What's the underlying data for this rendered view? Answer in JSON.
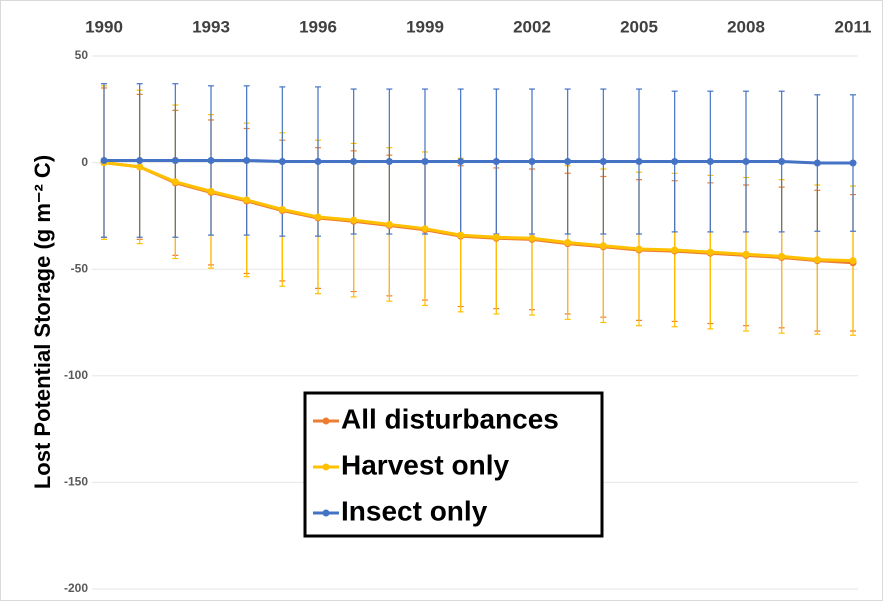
{
  "chart_data": {
    "type": "line",
    "y_label": "Lost Potential Storage (g m⁻² C)",
    "x": [
      1990,
      1991,
      1992,
      1993,
      1994,
      1995,
      1996,
      1997,
      1998,
      1999,
      2000,
      2001,
      2002,
      2003,
      2004,
      2005,
      2006,
      2007,
      2008,
      2009,
      2010,
      2011
    ],
    "xlim": [
      1990,
      2011
    ],
    "xticks": [
      1990,
      1993,
      1996,
      1999,
      2002,
      2005,
      2008,
      2011
    ],
    "ylim": [
      -200,
      50
    ],
    "yticks": [
      -200,
      -150,
      -100,
      -50,
      0,
      50
    ],
    "grid": true,
    "legend": "center",
    "series": [
      {
        "name": "All disturbances",
        "color": "#ED7D31",
        "values": [
          0,
          -2,
          -9.5,
          -14,
          -18,
          -22.5,
          -26,
          -27.5,
          -29.5,
          -31.5,
          -34.5,
          -35.5,
          -36,
          -38,
          -39.5,
          -41,
          -41.5,
          -42.5,
          -43.5,
          -44.5,
          -46,
          -47
        ],
        "errors": [
          35,
          34,
          34,
          34,
          34,
          33,
          33,
          33,
          33,
          33,
          33,
          33,
          33,
          33,
          33,
          33,
          33,
          33,
          33,
          33,
          33,
          32
        ]
      },
      {
        "name": "Harvest only",
        "color": "#FFC000",
        "values": [
          0,
          -2,
          -9,
          -13.5,
          -17.5,
          -22,
          -25.5,
          -27,
          -29,
          -31,
          -34,
          -35,
          -35.5,
          -37.5,
          -39,
          -40.5,
          -41,
          -42,
          -43,
          -44,
          -45.5,
          -46
        ],
        "errors": [
          36,
          36,
          36,
          36,
          36,
          36,
          36,
          36,
          36,
          36,
          36,
          36,
          36,
          36,
          36,
          36,
          36,
          36,
          36,
          36,
          35,
          35
        ]
      },
      {
        "name": "Insect only",
        "color": "#4472C4",
        "values": [
          1,
          1,
          1,
          1,
          1,
          0.5,
          0.5,
          0.5,
          0.5,
          0.5,
          0.5,
          0.5,
          0.5,
          0.5,
          0.5,
          0.5,
          0.5,
          0.5,
          0.5,
          0.5,
          -0.2,
          -0.2
        ],
        "errors": [
          36,
          36,
          36,
          35,
          35,
          35,
          35,
          34,
          34,
          34,
          34,
          34,
          34,
          34,
          34,
          34,
          33,
          33,
          33,
          33,
          32,
          32
        ]
      }
    ]
  }
}
